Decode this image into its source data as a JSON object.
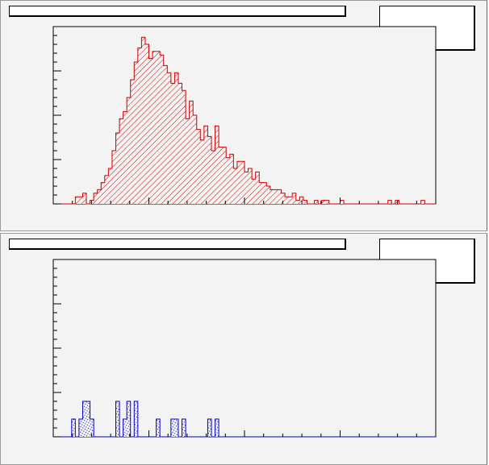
{
  "chart_data": [
    {
      "type": "bar",
      "style": "histogram",
      "fill_pattern": "hatched",
      "color": "#cc0000",
      "title": "",
      "xlabel": "",
      "ylabel": "",
      "xlim": [
        0,
        104
      ],
      "ylim": [
        0,
        50
      ],
      "grid": false,
      "stats_box": "top-right",
      "values": [
        0,
        0,
        0,
        0,
        0,
        0,
        2,
        2,
        3,
        0,
        1,
        3,
        4,
        6,
        8,
        10,
        15,
        20,
        24,
        26,
        30,
        35,
        40,
        44,
        47,
        45,
        41,
        43,
        43,
        42,
        39,
        37,
        34,
        37,
        34,
        32,
        24,
        29,
        25,
        21,
        18,
        22,
        19,
        15,
        22,
        16,
        16,
        13,
        14,
        10,
        12,
        12,
        9,
        10,
        7,
        9,
        6,
        6,
        5,
        4,
        4,
        4,
        3,
        2,
        2,
        3,
        1,
        2,
        1,
        0,
        0,
        1,
        0,
        1,
        1,
        0,
        0,
        0,
        1,
        0,
        0,
        0,
        0,
        0,
        0,
        0,
        0,
        0,
        0,
        0,
        0,
        1,
        0,
        1,
        0,
        0,
        0,
        0,
        0,
        0,
        1,
        0,
        0,
        0
      ]
    },
    {
      "type": "bar",
      "style": "histogram",
      "fill_pattern": "dotted",
      "color": "#0000cc",
      "title": "",
      "xlabel": "",
      "ylabel": "",
      "xlim": [
        0,
        104
      ],
      "ylim": [
        0,
        10
      ],
      "grid": false,
      "stats_box": "top-right",
      "values": [
        0,
        0,
        0,
        0,
        0,
        1,
        0,
        1,
        2,
        2,
        1,
        0,
        0,
        0,
        0,
        0,
        0,
        2,
        0,
        1,
        2,
        0,
        2,
        0,
        0,
        0,
        0,
        0,
        1,
        0,
        0,
        0,
        1,
        1,
        0,
        1,
        0,
        0,
        0,
        0,
        0,
        0,
        1,
        0,
        1,
        0,
        0,
        0,
        0,
        0,
        0,
        0,
        0,
        0,
        0,
        0,
        0,
        0,
        0,
        0,
        0,
        0,
        0,
        0,
        0,
        0,
        0,
        0,
        0,
        0,
        0,
        0,
        0,
        0,
        0,
        0,
        0,
        0,
        0,
        0,
        0,
        0,
        0,
        0,
        0,
        0,
        0,
        0,
        0,
        0,
        0,
        0,
        0,
        0,
        0,
        0,
        0,
        0,
        0,
        0,
        0,
        0,
        0,
        0
      ]
    }
  ]
}
